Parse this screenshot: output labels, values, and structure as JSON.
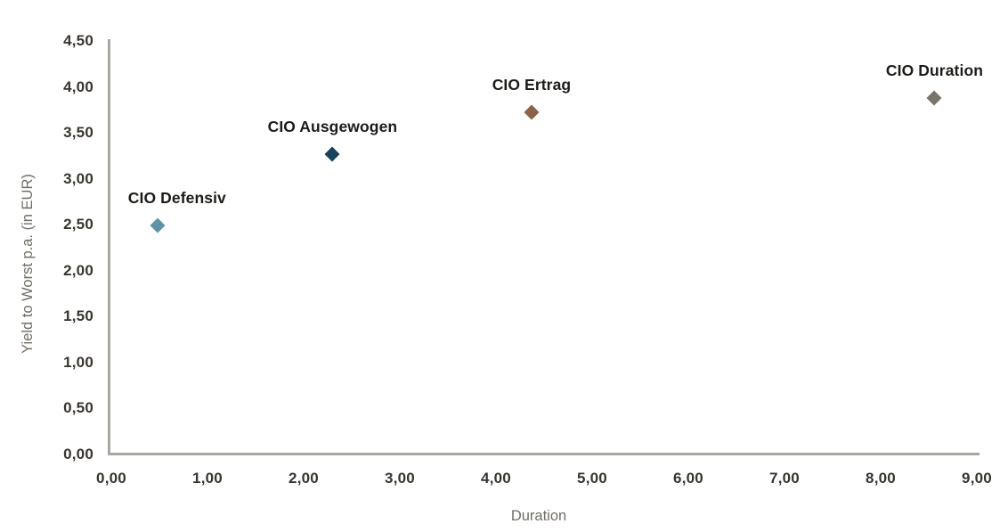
{
  "chart_data": {
    "type": "scatter",
    "title": "",
    "xlabel": "Duration",
    "ylabel": "Yield to Worst p.a. (in EUR)",
    "xlim": [
      0,
      9
    ],
    "ylim": [
      0,
      4.5
    ],
    "grid": false,
    "legend_position": "none (points labeled directly above markers)",
    "marker_shape": "diamond",
    "x_tick_labels": [
      "0,00",
      "1,00",
      "2,00",
      "3,00",
      "4,00",
      "5,00",
      "6,00",
      "7,00",
      "8,00",
      "9,00"
    ],
    "x_tick_values": [
      0,
      1,
      2,
      3,
      4,
      5,
      6,
      7,
      8,
      9
    ],
    "y_tick_labels": [
      "0,00",
      "0,50",
      "1,00",
      "1,50",
      "2,00",
      "2,50",
      "3,00",
      "3,50",
      "4,00",
      "4,50"
    ],
    "y_tick_values": [
      0,
      0.5,
      1,
      1.5,
      2,
      2.5,
      3,
      3.5,
      4,
      4.5
    ],
    "points": [
      {
        "name": "CIO Defensiv",
        "x": 0.48,
        "y": 2.49,
        "color": "#5f94a6",
        "label_dx": 22
      },
      {
        "name": "CIO Ausgewogen",
        "x": 2.3,
        "y": 3.27,
        "color": "#16425c",
        "label_dx": 0
      },
      {
        "name": "CIO Ertrag",
        "x": 4.37,
        "y": 3.72,
        "color": "#8a6349",
        "label_dx": 0
      },
      {
        "name": "CIO Duration",
        "x": 8.56,
        "y": 3.88,
        "color": "#79736a",
        "label_dx": 0
      }
    ]
  },
  "colors": {
    "background": "#ffffff",
    "axis_line": "#a9a6a1",
    "tick_label": "#38352f",
    "axis_title": "#716d68",
    "point_label": "#1e1c19"
  }
}
